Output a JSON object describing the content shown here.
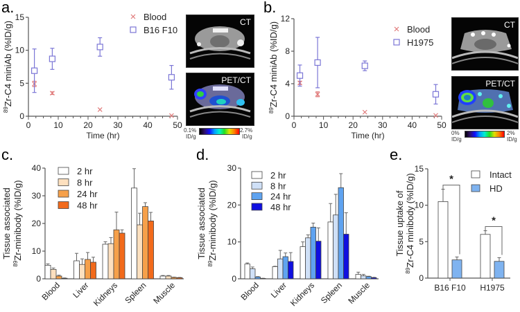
{
  "panels": {
    "a": {
      "letter": "a.",
      "ct_label": "CT",
      "petct_label": "PET/CT",
      "cbar_min": "0.1%",
      "cbar_max": "2.7%",
      "cbar_unit": "ID/g"
    },
    "b": {
      "letter": "b.",
      "ct_label": "CT",
      "petct_label": "PET/CT",
      "cbar_min": "0%",
      "cbar_max": "2%",
      "cbar_unit": "ID/g"
    },
    "c": {
      "letter": "c."
    },
    "d": {
      "letter": "d."
    },
    "e": {
      "letter": "e."
    }
  },
  "chart_data": [
    {
      "id": "a",
      "type": "scatter",
      "xlabel": "Time (hr)",
      "ylabel_sup": "89",
      "ylabel": "Zr-C4 miniAb (%ID/g)",
      "xlim": [
        0,
        50
      ],
      "ylim": [
        0,
        15
      ],
      "xticks": [
        0,
        10,
        20,
        30,
        40,
        50
      ],
      "yticks": [
        0,
        5,
        10,
        15
      ],
      "legend": "top-right",
      "series": [
        {
          "name": "Blood",
          "marker": "x",
          "color": "#e07a7a",
          "x": [
            2,
            8,
            24,
            48
          ],
          "y": [
            4.9,
            3.5,
            1.0,
            0.1
          ],
          "err": [
            0.4,
            0.2,
            0,
            0
          ]
        },
        {
          "name": "B16 F10",
          "marker": "square",
          "color": "#7b76d6",
          "x": [
            2,
            8,
            24,
            48
          ],
          "y": [
            6.9,
            8.7,
            10.5,
            5.9
          ],
          "err": [
            3.3,
            1.6,
            1.4,
            1.8
          ]
        }
      ]
    },
    {
      "id": "b",
      "type": "scatter",
      "xlabel": "Time (hr)",
      "ylabel_sup": "89",
      "ylabel": "Zr-C4 miniAb (%ID/g)",
      "xlim": [
        0,
        50
      ],
      "ylim": [
        0,
        12
      ],
      "xticks": [
        0,
        10,
        20,
        30,
        40,
        50
      ],
      "yticks": [
        0,
        4,
        8,
        12
      ],
      "legend": "top-right",
      "series": [
        {
          "name": "Blood",
          "marker": "x",
          "color": "#e07a7a",
          "x": [
            2,
            8,
            24,
            48
          ],
          "y": [
            4.1,
            2.7,
            0.5,
            0.1
          ],
          "err": [
            0.2,
            0.3,
            0,
            0
          ]
        },
        {
          "name": "H1975",
          "marker": "square",
          "color": "#7b76d6",
          "x": [
            2,
            8,
            24,
            48
          ],
          "y": [
            5.0,
            6.6,
            6.2,
            2.7
          ],
          "err": [
            1.3,
            3.1,
            0.6,
            1.2
          ]
        }
      ]
    },
    {
      "id": "c",
      "type": "bar",
      "ylabel_line1": "Tissue associated",
      "ylabel_sup": "89",
      "ylabel": "Zr-minibody (%ID/g)",
      "ylim": [
        0,
        40
      ],
      "yticks": [
        0,
        10,
        20,
        30,
        40
      ],
      "categories": [
        "Blood",
        "Liver",
        "Kidneys",
        "Spleen",
        "Muscle"
      ],
      "legend": "top-left",
      "series": [
        {
          "name": "2 hr",
          "color": "#ffffff",
          "values": [
            4.9,
            6.5,
            12.5,
            32.8,
            1.0
          ],
          "err": [
            0.5,
            2.7,
            0.9,
            7.0,
            0.2
          ]
        },
        {
          "name": "8 hr",
          "color": "#fde0bf",
          "values": [
            3.4,
            5.2,
            12.7,
            19.5,
            1.0
          ],
          "err": [
            0.5,
            2.0,
            2.2,
            4.2,
            0.2
          ]
        },
        {
          "name": "24 hr",
          "color": "#f6a04a",
          "values": [
            1.0,
            7.0,
            17.7,
            26.1,
            0.5
          ],
          "err": [
            0.3,
            2.5,
            6.4,
            1.4,
            0.1
          ]
        },
        {
          "name": "48 hr",
          "color": "#f26a1b",
          "values": [
            0.2,
            6.0,
            16.5,
            20.9,
            0.4
          ],
          "err": [
            0.1,
            1.8,
            1.2,
            3.1,
            0.1
          ]
        }
      ]
    },
    {
      "id": "d",
      "type": "bar",
      "ylabel_line1": "Tissue associated",
      "ylabel_sup": "89",
      "ylabel": "Zr-minibody (%ID/g)",
      "ylim": [
        0,
        30
      ],
      "yticks": [
        0,
        10,
        20,
        30
      ],
      "categories": [
        "Blood",
        "Liver",
        "Kidneys",
        "Spleen",
        "Muscle"
      ],
      "legend": "top-left",
      "series": [
        {
          "name": "2 hr",
          "color": "#ffffff",
          "values": [
            4.0,
            3.3,
            8.7,
            15.4,
            1.2
          ],
          "err": [
            0.3,
            0.1,
            1.3,
            5.0,
            0.6
          ]
        },
        {
          "name": "8 hr",
          "color": "#cfe0f7",
          "values": [
            2.7,
            5.4,
            11.1,
            17.3,
            0.8
          ],
          "err": [
            0.5,
            2.3,
            0.8,
            5.6,
            0.4
          ]
        },
        {
          "name": "24 hr",
          "color": "#5fa3f0",
          "values": [
            0.5,
            6.0,
            14.0,
            24.7,
            0.6
          ],
          "err": [
            0.1,
            1.0,
            1.1,
            3.8,
            0.1
          ]
        },
        {
          "name": "48 hr",
          "color": "#1010e0",
          "values": [
            0.1,
            4.7,
            10.2,
            12.1,
            0.3
          ],
          "err": [
            0.05,
            2.4,
            3.6,
            5.8,
            0.1
          ]
        }
      ]
    },
    {
      "id": "e",
      "type": "bar",
      "ylabel_line1": "Tissue uptake of",
      "ylabel_sup": "89",
      "ylabel": "Zr-C4 minibody (%ID/g)",
      "ylim": [
        0,
        15
      ],
      "yticks": [
        0,
        5,
        10,
        15
      ],
      "categories": [
        "B16 F10",
        "H1975"
      ],
      "legend": "top-right",
      "significance": [
        "*",
        "*"
      ],
      "series": [
        {
          "name": "Intact",
          "color": "#ffffff",
          "values": [
            10.5,
            6.0
          ],
          "err": [
            1.7,
            0.5
          ]
        },
        {
          "name": "HD",
          "color": "#7fb3f0",
          "values": [
            2.5,
            2.3
          ],
          "err": [
            0.4,
            0.5
          ]
        }
      ]
    }
  ]
}
